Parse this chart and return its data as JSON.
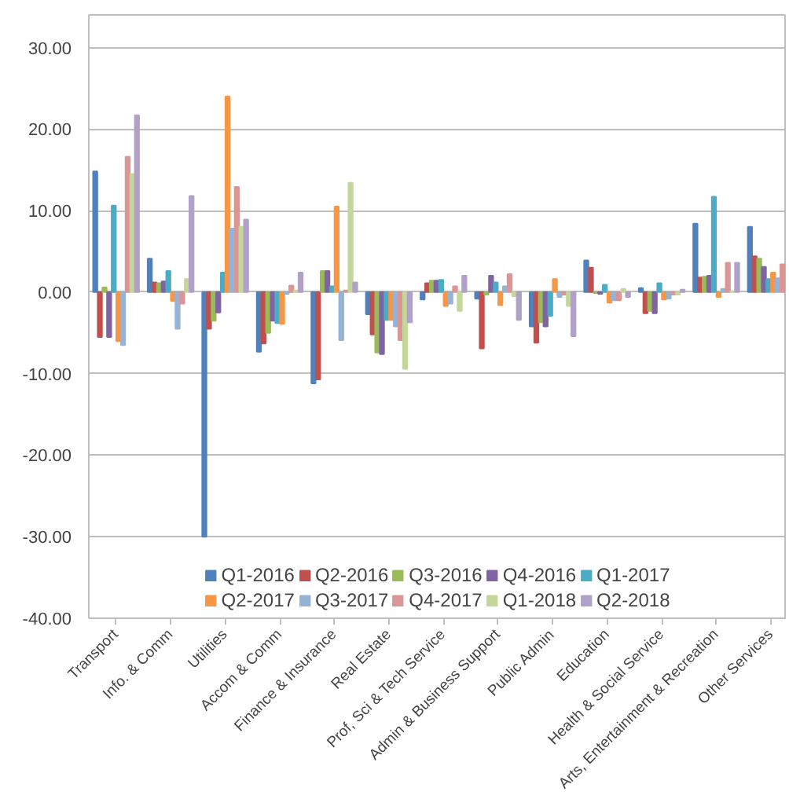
{
  "chart_data": {
    "type": "bar",
    "categories": [
      "Transport",
      "Info. & Comm",
      "Utilities",
      "Accom & Comm",
      "Finance & Insurance",
      "Real Estate",
      "Prof, Sci & Tech Service",
      "Admin & Business Support",
      "Public Admin",
      "Education",
      "Health & Social Service",
      "Arts, Entertainment & Recreation",
      "Other Services"
    ],
    "series": [
      {
        "name": "Q1-2016",
        "color": "#4f81bd",
        "values": [
          14.8,
          4.1,
          -30.0,
          -7.3,
          -11.2,
          -2.7,
          -0.9,
          -0.8,
          -4.2,
          3.9,
          0.5,
          8.4,
          8.0
        ]
      },
      {
        "name": "Q2-2016",
        "color": "#c0504d",
        "values": [
          -5.5,
          1.2,
          -4.5,
          -6.3,
          -10.7,
          -5.2,
          1.1,
          -6.9,
          -6.2,
          3.0,
          -2.6,
          1.8,
          4.4
        ]
      },
      {
        "name": "Q3-2016",
        "color": "#9bbb59",
        "values": [
          0.6,
          1.1,
          -3.5,
          -5.0,
          2.6,
          -7.4,
          1.4,
          -0.3,
          -3.7,
          -0.1,
          -2.3,
          1.9,
          4.1
        ]
      },
      {
        "name": "Q4-2016",
        "color": "#8064a2",
        "values": [
          -5.5,
          1.3,
          -2.5,
          -3.5,
          2.6,
          -7.6,
          1.4,
          2.0,
          -4.2,
          -0.2,
          -2.6,
          2.0,
          3.1
        ]
      },
      {
        "name": "Q1-2017",
        "color": "#4bacc6",
        "values": [
          10.6,
          2.6,
          2.4,
          -3.8,
          0.7,
          -3.4,
          1.5,
          1.2,
          -2.9,
          0.9,
          1.1,
          11.7,
          1.6
        ]
      },
      {
        "name": "Q2-2017",
        "color": "#f79646",
        "values": [
          -6.0,
          -1.1,
          24.0,
          -3.9,
          10.5,
          -3.4,
          -1.7,
          -1.6,
          1.6,
          -1.3,
          -0.9,
          -0.6,
          2.4
        ]
      },
      {
        "name": "Q3-2017",
        "color": "#95b3d7",
        "values": [
          -6.5,
          -4.5,
          7.8,
          -0.2,
          -5.9,
          -4.2,
          -1.4,
          0.7,
          -0.6,
          -1.0,
          -0.8,
          0.4,
          1.7
        ]
      },
      {
        "name": "Q4-2017",
        "color": "#da9694",
        "values": [
          16.6,
          -1.4,
          12.9,
          0.8,
          0.2,
          -5.9,
          0.7,
          2.2,
          -0.3,
          -1.0,
          -0.3,
          3.6,
          3.4
        ]
      },
      {
        "name": "Q1-2018",
        "color": "#c4d79b",
        "values": [
          14.5,
          1.6,
          8.0,
          0.2,
          13.4,
          -9.4,
          -2.3,
          -0.5,
          -1.7,
          0.4,
          -0.3,
          0.1,
          null
        ]
      },
      {
        "name": "Q2-2018",
        "color": "#b1a0c7",
        "values": [
          21.7,
          11.8,
          8.9,
          2.4,
          1.2,
          -3.7,
          2.0,
          -3.4,
          -5.4,
          -0.6,
          0.3,
          3.6,
          null
        ]
      }
    ],
    "ylim": [
      -40,
      34
    ],
    "yticks": [
      {
        "value": -40,
        "label": "-40.00"
      },
      {
        "value": -30,
        "label": "-30.00"
      },
      {
        "value": -20,
        "label": "-20.00"
      },
      {
        "value": -10,
        "label": "-10.00"
      },
      {
        "value": 0,
        "label": "0.00"
      },
      {
        "value": 10,
        "label": "10.00"
      },
      {
        "value": 20,
        "label": "20.00"
      },
      {
        "value": 30,
        "label": "30.00"
      }
    ],
    "grid": "y",
    "legend": "bottom"
  }
}
